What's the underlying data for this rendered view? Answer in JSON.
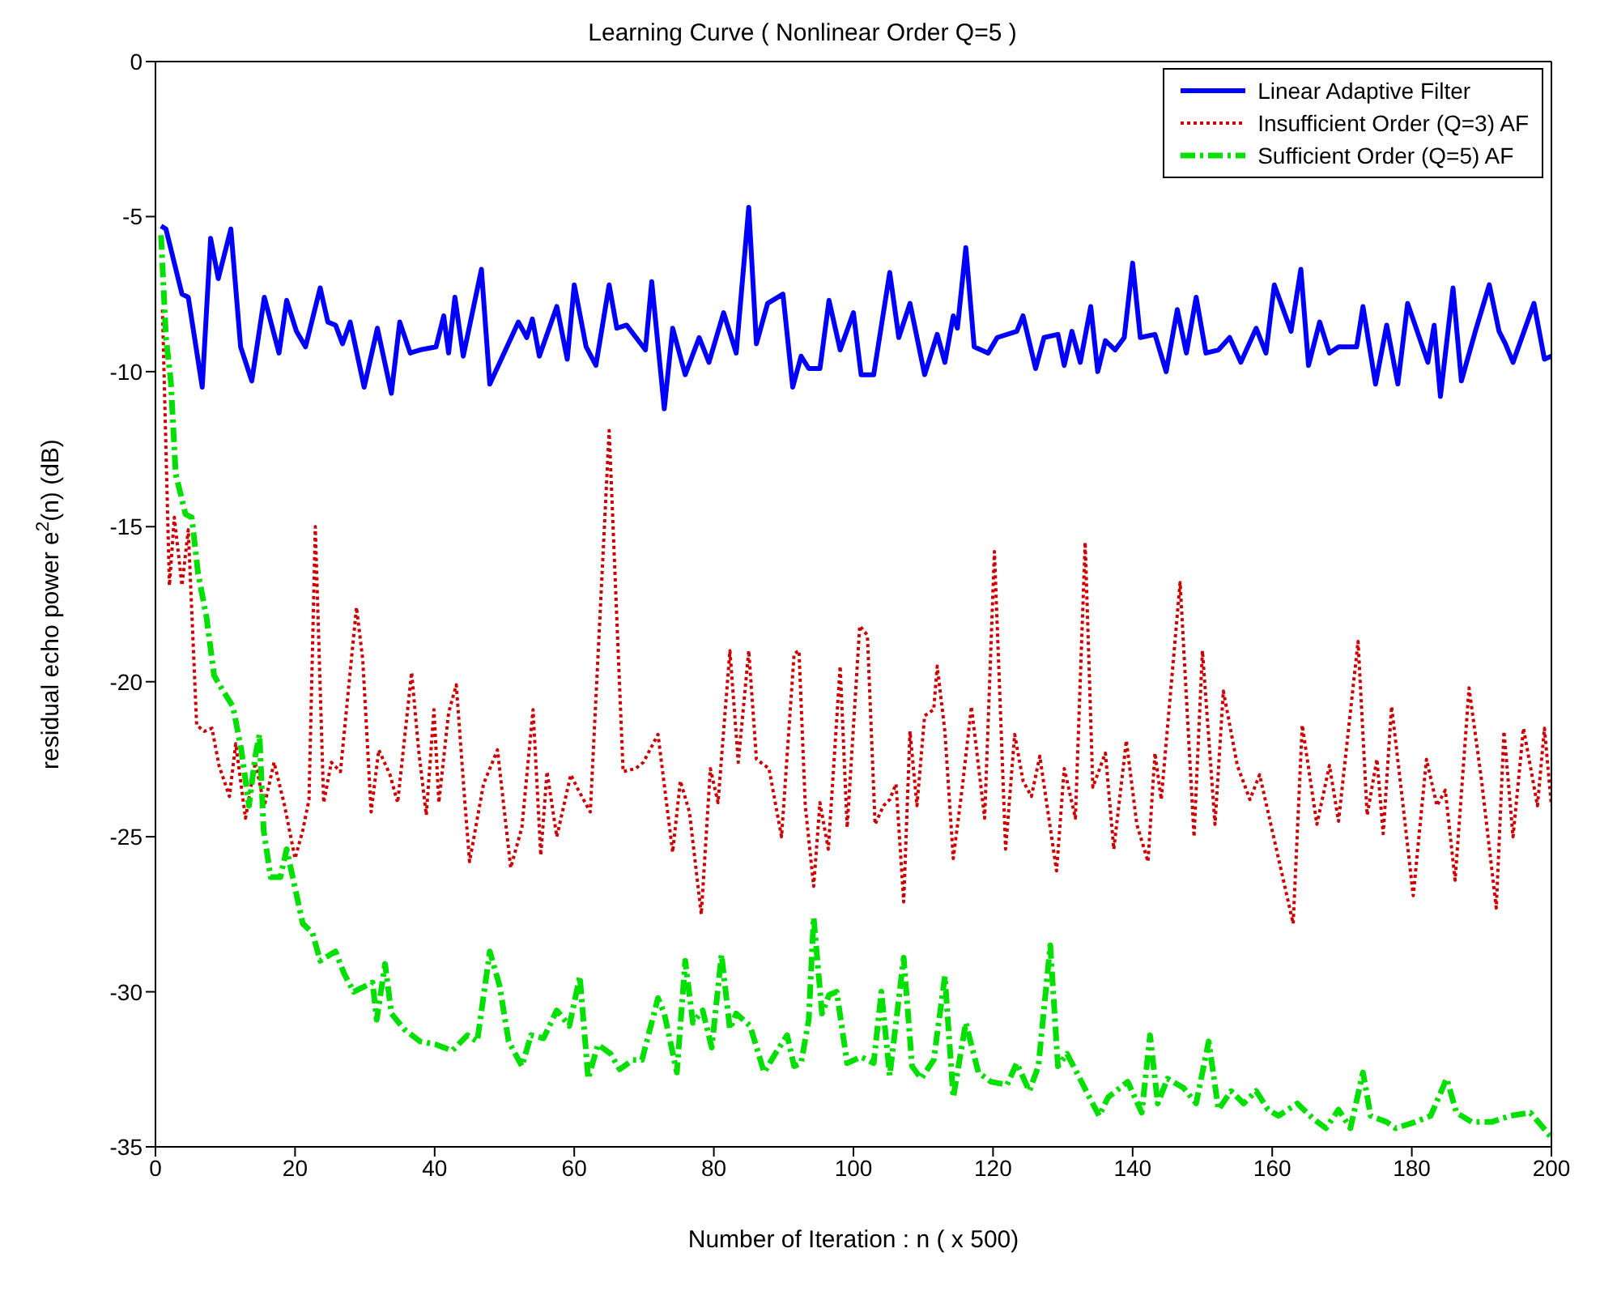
{
  "chart_data": {
    "type": "line",
    "title": "Learning Curve ( Nonlinear Order Q=5 )",
    "xlabel": "Number of Iteration : n ( x 500)",
    "ylabel": "residual echo power e$^{2}$(n) (dB)",
    "xlim": [
      0,
      200
    ],
    "xticks": [
      0,
      20,
      40,
      60,
      80,
      100,
      120,
      140,
      160,
      180,
      200
    ],
    "ylim": [
      -35,
      0
    ],
    "yticks": [
      -35,
      -30,
      -25,
      -20,
      -15,
      -10,
      -5,
      0
    ],
    "legend": "top right",
    "series": [
      {
        "name": "Linear Adaptive Filter",
        "color": "#0000ff",
        "line_style": "solid",
        "x": [
          0.8,
          1.5,
          3.8,
          4.7,
          6.7,
          7.9,
          9,
          10.8,
          12.2,
          13.8,
          15.6,
          17.7,
          18.8,
          20.2,
          21.5,
          23.6,
          24.7,
          25.8,
          26.8,
          27.9,
          29.9,
          31.8,
          33.8,
          35,
          36.5,
          37.9,
          40.2,
          41.3,
          42,
          42.9,
          44.1,
          46.7,
          47.9,
          52,
          53.2,
          54,
          55,
          57.5,
          59,
          60,
          61.7,
          63.1,
          65,
          66.1,
          67.5,
          70.2,
          71.1,
          72.9,
          74.1,
          75.9,
          77.9,
          79.3,
          81.4,
          83.2,
          85,
          86.1,
          87.7,
          89.9,
          91.3,
          92.5,
          93.6,
          95.2,
          96.5,
          98.1,
          100,
          101.1,
          102.9,
          105.2,
          106.5,
          108.1,
          110.2,
          112,
          113.1,
          114.3,
          114.9,
          116.1,
          117.3,
          119.3,
          120.6,
          123.4,
          124.3,
          126.1,
          127.3,
          129.3,
          130.2,
          131.3,
          132.5,
          134,
          135,
          136.1,
          137.5,
          138.8,
          140,
          141.1,
          143.2,
          144.8,
          146.4,
          147.7,
          149.1,
          150.5,
          152.3,
          153.9,
          155.5,
          157.7,
          159.1,
          160.3,
          162.7,
          164.1,
          165.2,
          166.8,
          168.2,
          169.5,
          172.1,
          173,
          174.8,
          176.4,
          178,
          179.4,
          182.3,
          183.2,
          184.1,
          185.9,
          187.1,
          189.1,
          191.1,
          192.5,
          193.4,
          194.5,
          197.5,
          199,
          200
        ],
        "values": [
          -5.3,
          -5.4,
          -7.5,
          -7.6,
          -10.5,
          -5.7,
          -7,
          -5.4,
          -9.2,
          -10.3,
          -7.6,
          -9.4,
          -7.7,
          -8.7,
          -9.2,
          -7.3,
          -8.4,
          -8.5,
          -9.1,
          -8.4,
          -10.5,
          -8.6,
          -10.7,
          -8.4,
          -9.4,
          -9.3,
          -9.2,
          -8.2,
          -9.4,
          -7.6,
          -9.5,
          -6.7,
          -10.4,
          -8.4,
          -8.9,
          -8.3,
          -9.5,
          -7.9,
          -9.6,
          -7.2,
          -9.2,
          -9.8,
          -7.2,
          -8.6,
          -8.5,
          -9.3,
          -7.1,
          -11.2,
          -8.6,
          -10.1,
          -8.9,
          -9.7,
          -8.1,
          -9.4,
          -4.7,
          -9.1,
          -7.8,
          -7.5,
          -10.5,
          -9.5,
          -9.9,
          -9.9,
          -7.7,
          -9.3,
          -8.1,
          -10.1,
          -10.1,
          -6.8,
          -8.9,
          -7.8,
          -10.1,
          -8.8,
          -9.7,
          -8.2,
          -8.6,
          -6,
          -9.2,
          -9.4,
          -8.9,
          -8.7,
          -8.2,
          -9.9,
          -8.9,
          -8.8,
          -9.8,
          -8.7,
          -9.7,
          -7.9,
          -10,
          -9,
          -9.3,
          -8.9,
          -6.5,
          -8.9,
          -8.8,
          -10,
          -8,
          -9.4,
          -7.6,
          -9.4,
          -9.3,
          -8.9,
          -9.7,
          -8.6,
          -9.4,
          -7.2,
          -8.7,
          -6.7,
          -9.8,
          -8.4,
          -9.4,
          -9.2,
          -9.2,
          -7.9,
          -10.4,
          -8.5,
          -10.4,
          -7.8,
          -9.7,
          -8.5,
          -10.8,
          -7.3,
          -10.3,
          -8.7,
          -7.2,
          -8.7,
          -9.1,
          -9.7,
          -7.8,
          -9.6,
          -9.5
        ]
      },
      {
        "name": "Insufficient Order (Q=3) AF",
        "color": "#cc0000",
        "line_style": "dotted",
        "x": [
          1,
          2,
          2.7,
          3.8,
          4.7,
          5.9,
          7,
          8.1,
          9.1,
          10.6,
          11.5,
          12.9,
          14.3,
          15.6,
          17,
          18.5,
          20,
          21.1,
          22,
          22.9,
          24.1,
          25.2,
          26.5,
          28.8,
          29.7,
          30.9,
          32,
          33.6,
          34.7,
          36.7,
          37.7,
          38.8,
          39.9,
          40.6,
          42,
          43.1,
          44.3,
          45,
          47,
          49,
          50.9,
          52.5,
          54.1,
          55.2,
          56.1,
          57.5,
          59.5,
          60.6,
          62.3,
          65,
          67,
          68.8,
          69.9,
          72,
          74.1,
          75.2,
          76.5,
          78.2,
          79.5,
          80.6,
          82.3,
          83.5,
          85,
          86.1,
          87.9,
          89.7,
          91.5,
          92.2,
          93.1,
          94.3,
          95.2,
          96.4,
          98.1,
          99.1,
          100.9,
          102,
          103.1,
          104.3,
          105.2,
          106.1,
          107.2,
          108.1,
          109.1,
          110.2,
          111.5,
          112,
          113.1,
          114.3,
          115.6,
          116.9,
          118.8,
          120.2,
          121.8,
          123.1,
          124.3,
          125.5,
          126.7,
          129.1,
          130.2,
          131.8,
          133.2,
          134.3,
          136.1,
          137.3,
          139.1,
          140.6,
          142.2,
          143.2,
          144.1,
          146.8,
          148.8,
          150,
          151.8,
          153,
          155,
          156.8,
          158.2,
          160.9,
          163,
          164.3,
          166.4,
          168.2,
          169.5,
          172.3,
          173.6,
          175,
          175.9,
          177.1,
          178.6,
          180.2,
          182.1,
          183.6,
          184.8,
          186.2,
          188.2,
          190,
          192.1,
          193.2,
          194.5,
          196,
          198,
          199,
          200
        ],
        "values": [
          -8,
          -16.9,
          -14.7,
          -16.9,
          -15.1,
          -21.4,
          -21.6,
          -21.5,
          -22.7,
          -23.7,
          -22,
          -24.4,
          -22.6,
          -24,
          -22.6,
          -24,
          -25.7,
          -24.8,
          -23.8,
          -15,
          -23.9,
          -22.6,
          -22.9,
          -17.6,
          -19.3,
          -24.2,
          -22.2,
          -23,
          -23.9,
          -19.7,
          -22.2,
          -24.3,
          -20.9,
          -23.9,
          -21,
          -20.1,
          -23.8,
          -25.8,
          -23.3,
          -22.2,
          -26,
          -24.7,
          -20.9,
          -25.6,
          -22.9,
          -25,
          -23,
          -23.5,
          -24.2,
          -11.9,
          -22.9,
          -22.8,
          -22.6,
          -21.7,
          -25.5,
          -23.2,
          -24.2,
          -27.5,
          -22.8,
          -23.9,
          -19,
          -22.6,
          -19,
          -22.5,
          -22.8,
          -25,
          -19.1,
          -19,
          -24,
          -26.6,
          -23.9,
          -25.4,
          -19.5,
          -24.7,
          -18.2,
          -18.5,
          -24.6,
          -24,
          -23.8,
          -23.3,
          -27.1,
          -21.6,
          -24,
          -21.1,
          -20.9,
          -19.5,
          -21.6,
          -25.7,
          -23.4,
          -20.8,
          -24.4,
          -15.8,
          -25.4,
          -21.7,
          -23.2,
          -23.7,
          -22.4,
          -26.1,
          -22.8,
          -24.4,
          -15.5,
          -23.4,
          -22.3,
          -25.4,
          -21.9,
          -24.6,
          -25.8,
          -22.3,
          -23.8,
          -16.8,
          -25,
          -19,
          -24.6,
          -20.3,
          -22.7,
          -23.8,
          -23,
          -25.7,
          -27.8,
          -21.4,
          -24.6,
          -22.7,
          -24.5,
          -18.7,
          -24.3,
          -22.5,
          -24.9,
          -20.8,
          -23.7,
          -26.9,
          -22.5,
          -24,
          -23.5,
          -26.4,
          -20.2,
          -23.2,
          -27.3,
          -21.6,
          -25,
          -21.5,
          -24,
          -21.5,
          -24
        ]
      },
      {
        "name": "Sufficient Order (Q=5) AF",
        "color": "#00e000",
        "line_style": "dashed",
        "x": [
          0.8,
          1.5,
          2.2,
          2.9,
          4.3,
          5.2,
          6.1,
          7.3,
          8.4,
          9.7,
          11.1,
          12.3,
          13.4,
          14.3,
          14.9,
          15.5,
          16.5,
          17.9,
          18.8,
          21.1,
          22.5,
          23.6,
          25.8,
          27,
          28.4,
          31.1,
          31.7,
          32.9,
          33.8,
          35.6,
          37.9,
          40.2,
          42.5,
          44.7,
          46.1,
          47.9,
          49.3,
          50.6,
          52.5,
          53.8,
          55.6,
          57.5,
          59.3,
          60.8,
          62,
          63.4,
          65.2,
          66.5,
          68.4,
          69.7,
          72,
          72.9,
          74.7,
          75.9,
          77,
          78.4,
          79.7,
          81.1,
          82.3,
          83.2,
          85.2,
          87.2,
          88.8,
          90.5,
          91.5,
          92.5,
          93.6,
          94.3,
          95.5,
          96.5,
          97.6,
          99.1,
          101.1,
          102.9,
          104,
          105.2,
          107.2,
          108.4,
          109.7,
          111.5,
          113.1,
          114.3,
          116.1,
          117.9,
          119.7,
          122,
          123.4,
          125.2,
          126.5,
          128.2,
          129.3,
          130.6,
          132,
          133.8,
          135.2,
          136.5,
          139.3,
          141.3,
          142.5,
          143.6,
          145,
          147.3,
          149.1,
          150.9,
          152.3,
          154.1,
          155.9,
          157.7,
          159.4,
          160.9,
          163.6,
          165.9,
          167.7,
          169.5,
          171.2,
          173,
          174.1,
          176.4,
          177.7,
          180.5,
          182.7,
          185,
          186.4,
          188.6,
          191.4,
          194.1,
          197,
          200
        ],
        "values": [
          -5.6,
          -8.9,
          -10.3,
          -13.3,
          -14.6,
          -14.7,
          -16.5,
          -17.9,
          -19.8,
          -20.3,
          -20.8,
          -22.2,
          -24,
          -22.4,
          -21.7,
          -24.8,
          -26.3,
          -26.3,
          -25.4,
          -27.8,
          -28.1,
          -29,
          -28.7,
          -29.4,
          -30,
          -29.7,
          -30.9,
          -29.1,
          -30.7,
          -31.2,
          -31.6,
          -31.7,
          -31.9,
          -31.4,
          -31.6,
          -28.7,
          -29.8,
          -31.6,
          -32.4,
          -31.4,
          -31.5,
          -30.6,
          -31.1,
          -29.5,
          -32.8,
          -31.7,
          -32,
          -32.5,
          -32.2,
          -32.2,
          -30.2,
          -30.7,
          -32.6,
          -29,
          -31,
          -30.6,
          -31.8,
          -28.8,
          -31.2,
          -30.7,
          -31.1,
          -32.6,
          -32,
          -31.4,
          -32.4,
          -32.3,
          -30.9,
          -27.6,
          -30.7,
          -30.1,
          -30,
          -32.3,
          -32.1,
          -32.3,
          -30,
          -32.7,
          -28.9,
          -32.4,
          -32.8,
          -32.2,
          -29.5,
          -33.4,
          -31,
          -32.6,
          -32.9,
          -33,
          -32.3,
          -33.2,
          -32.4,
          -28.5,
          -32.4,
          -32,
          -32.6,
          -33.4,
          -34,
          -33.4,
          -32.9,
          -33.9,
          -31.4,
          -33.6,
          -32.8,
          -33.1,
          -33.6,
          -31.6,
          -33.8,
          -33.2,
          -33.6,
          -33.2,
          -33.8,
          -34,
          -33.6,
          -34.1,
          -34.4,
          -33.8,
          -34.4,
          -32.6,
          -34,
          -34.2,
          -34.4,
          -34.2,
          -34,
          -32.8,
          -33.9,
          -34.2,
          -34.2,
          -34,
          -33.9,
          -34.7
        ]
      }
    ]
  }
}
